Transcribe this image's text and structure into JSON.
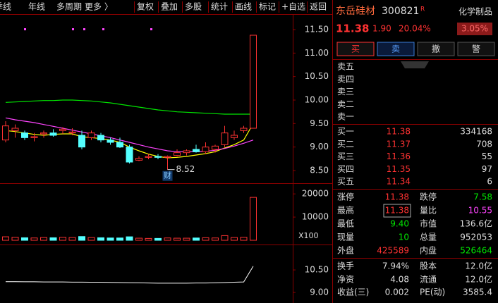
{
  "toolbar": {
    "tabs": [
      "季线",
      "年线",
      "多周期",
      "更多 〉"
    ],
    "buttons": [
      "复权",
      "叠加",
      "多股",
      "统计",
      "画线",
      "标记",
      "+自选",
      "返回"
    ]
  },
  "kline": {
    "ylim": [
      8.26,
      11.83
    ],
    "yticks": [
      {
        "value": 11.5,
        "label": "11.50"
      },
      {
        "value": 11,
        "label": "11.00"
      },
      {
        "value": 10.5,
        "label": "10.50"
      },
      {
        "value": 10,
        "label": "10.00"
      },
      {
        "value": 9.5,
        "label": "9.50"
      },
      {
        "value": 9,
        "label": "9.00"
      },
      {
        "value": 8.5,
        "label": "8.50"
      }
    ],
    "up_color": "#ff3232",
    "down_color": "#54ffff",
    "candles": [
      [
        9.15,
        9.55,
        9.1,
        9.45
      ],
      [
        9.35,
        9.48,
        9.2,
        9.4
      ],
      [
        9.3,
        9.35,
        9.15,
        9.2
      ],
      [
        9.2,
        9.3,
        9.12,
        9.22
      ],
      [
        9.28,
        9.35,
        9.2,
        9.3
      ],
      [
        9.3,
        9.38,
        9.22,
        9.25
      ],
      [
        9.35,
        9.42,
        9.28,
        9.38
      ],
      [
        9.3,
        9.4,
        9.25,
        9.32
      ],
      [
        9.25,
        9.35,
        8.95,
        9
      ],
      [
        9.2,
        9.35,
        9.15,
        9.3
      ],
      [
        9.25,
        9.3,
        9.1,
        9.15
      ],
      [
        9.15,
        9.2,
        9.05,
        9.1
      ],
      [
        9.1,
        9.2,
        8.98,
        9
      ],
      [
        9,
        9.05,
        8.65,
        8.68
      ],
      [
        8.72,
        8.8,
        8.7,
        8.76
      ],
      [
        8.78,
        8.85,
        8.74,
        8.8
      ],
      [
        8.8,
        8.85,
        8.74,
        8.78
      ],
      [
        8.78,
        8.82,
        8.52,
        8.8
      ],
      [
        8.82,
        8.95,
        8.8,
        8.88
      ],
      [
        8.88,
        8.95,
        8.82,
        8.92
      ],
      [
        8.95,
        9.05,
        8.88,
        8.9
      ],
      [
        8.9,
        9.1,
        8.85,
        9
      ],
      [
        8.95,
        9.05,
        8.88,
        9.02
      ],
      [
        9.05,
        9.45,
        9,
        9.3
      ],
      [
        9.2,
        9.35,
        9.15,
        9.25
      ],
      [
        9.35,
        9.45,
        9.3,
        9.4
      ],
      [
        9.4,
        11.38,
        9.4,
        11.38
      ]
    ],
    "ma": [
      {
        "color": "#ffff00",
        "values": [
          9.35,
          9.33,
          9.3,
          9.27,
          9.25,
          9.27,
          9.28,
          9.28,
          9.22,
          9.2,
          9.18,
          9.15,
          9.1,
          9,
          8.92,
          8.85,
          8.8,
          8.77,
          8.78,
          8.8,
          8.83,
          8.86,
          8.9,
          8.98,
          9.05,
          9.15,
          9.5
        ]
      },
      {
        "color": "#ff44ff",
        "values": [
          9.62,
          9.58,
          9.55,
          9.52,
          9.48,
          9.44,
          9.4,
          9.36,
          9.32,
          9.28,
          9.24,
          9.2,
          9.15,
          9.1,
          9.05,
          9,
          8.96,
          8.92,
          8.9,
          8.9,
          8.9,
          8.91,
          8.93,
          8.97,
          9.02,
          9.08,
          9.15
        ]
      },
      {
        "color": "#00e600",
        "values": [
          9.95,
          9.96,
          9.97,
          9.98,
          9.99,
          9.99,
          10,
          10,
          9.99,
          9.98,
          9.96,
          9.94,
          9.91,
          9.88,
          9.85,
          9.82,
          9.79,
          9.77,
          9.75,
          9.74,
          9.73,
          9.72,
          9.71,
          9.7,
          9.7,
          9.7,
          9.7
        ]
      }
    ],
    "low_annotation": 8.52,
    "event_marker": "财"
  },
  "volume": {
    "ylim": [
      0,
      24000
    ],
    "yticks": [
      20000,
      10000
    ],
    "unit": "X100",
    "values": [
      1500,
      1300,
      1100,
      1000,
      1200,
      1100,
      1300,
      1200,
      1600,
      1200,
      1100,
      1000,
      1000,
      1500,
      900,
      800,
      800,
      1000,
      900,
      900,
      1000,
      1100,
      1000,
      2000,
      1200,
      1300,
      18500
    ]
  },
  "indicator": {
    "ylim": [
      8.3,
      12.05
    ],
    "yticks": [
      {
        "value": 10.5,
        "label": "10.50"
      },
      {
        "value": 9,
        "label": "9.00"
      }
    ],
    "color": "#ffffff",
    "values": [
      9.72,
      9.72,
      9.71,
      9.71,
      9.7,
      9.7,
      9.7,
      9.69,
      9.69,
      9.68,
      9.68,
      9.67,
      9.66,
      9.65,
      9.64,
      9.63,
      9.62,
      9.62,
      9.62,
      9.62,
      9.63,
      9.63,
      9.64,
      9.66,
      9.68,
      9.7,
      10.75
    ]
  },
  "quote": {
    "name": "东岳硅材",
    "code": "300821",
    "badge": "R",
    "industry": "化学制品",
    "industry_change": "3.05%",
    "price": "11.38",
    "change": "1.90",
    "change_pct": "20.04%",
    "actions": [
      "买",
      "卖",
      "撤",
      "警"
    ],
    "asks": [
      {
        "label": "卖五"
      },
      {
        "label": "卖四"
      },
      {
        "label": "卖三"
      },
      {
        "label": "卖二"
      },
      {
        "label": "卖一"
      }
    ],
    "bids": [
      {
        "label": "买一",
        "price": 11.38,
        "volume": 334168
      },
      {
        "label": "买二",
        "price": 11.37,
        "volume": 708
      },
      {
        "label": "买三",
        "price": 11.36,
        "volume": 55
      },
      {
        "label": "买四",
        "price": 11.35,
        "volume": 97
      },
      {
        "label": "买五",
        "price": 11.34,
        "volume": 6
      }
    ],
    "stats": [
      {
        "cells": [
          "涨停",
          "11.38",
          "跌停",
          "7.58"
        ],
        "colors": [
          "#ff3232",
          "#00e600"
        ]
      },
      {
        "cells": [
          "最高",
          "11.38",
          "量比",
          "10.55"
        ],
        "colors": [
          "#ff3232",
          "#ff44ff"
        ]
      },
      {
        "cells": [
          "最低",
          "9.40",
          "市值",
          "136.6亿"
        ],
        "colors": [
          "#00e600",
          "#dddddd"
        ]
      },
      {
        "cells": [
          "现量",
          "10",
          "总量",
          "952053"
        ],
        "colors": [
          "#00e600",
          "#dddddd"
        ]
      },
      {
        "cells": [
          "外盘",
          "425589",
          "内盘",
          "526464"
        ],
        "colors": [
          "#ff3232",
          "#00e600"
        ]
      },
      {
        "cells": [
          "换手",
          "7.94%",
          "股本",
          "12.0亿"
        ],
        "colors": [
          "#dddddd",
          "#dddddd"
        ]
      },
      {
        "cells": [
          "净资",
          "4.08",
          "流通",
          "12.0亿"
        ],
        "colors": [
          "#dddddd",
          "#dddddd"
        ]
      },
      {
        "cells": [
          "收益(三)",
          "0.002",
          "PE(动)",
          "3585.4"
        ],
        "colors": [
          "#dddddd",
          "#dddddd"
        ]
      }
    ]
  }
}
